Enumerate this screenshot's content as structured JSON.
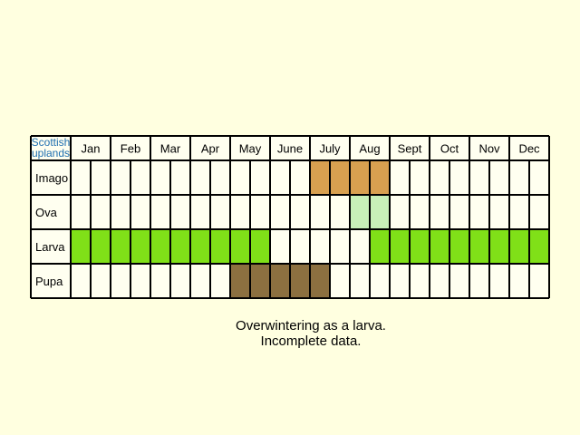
{
  "chart_data": {
    "type": "table",
    "corner_label": [
      "Scottish",
      "uplands"
    ],
    "months": [
      "Jan",
      "Feb",
      "Mar",
      "Apr",
      "May",
      "June",
      "July",
      "Aug",
      "Sept",
      "Oct",
      "Nov",
      "Dec"
    ],
    "periods_per_month": 2,
    "stages": [
      {
        "label": "Imago",
        "color": "#d8a050",
        "active_periods": [
          13,
          14,
          15,
          16
        ]
      },
      {
        "label": "Ova",
        "color": "#c8f0b8",
        "active_periods": [
          15,
          16
        ]
      },
      {
        "label": "Larva",
        "color": "#80e018",
        "active_periods": [
          1,
          2,
          3,
          4,
          5,
          6,
          7,
          8,
          9,
          10,
          16,
          17,
          18,
          19,
          20,
          21,
          22,
          23,
          24
        ]
      },
      {
        "label": "Pupa",
        "color": "#8c7040",
        "active_periods": [
          9,
          10,
          11,
          12,
          13
        ]
      }
    ],
    "colors": {
      "background": "#ffffe0",
      "cell": "#fffff0",
      "grid": "#000000",
      "corner_label": "#1f6fb0"
    }
  },
  "notes": [
    "Overwintering as a larva.",
    "Incomplete data."
  ],
  "months_display": [
    "Jan",
    "Feb",
    "Mar",
    "Apr",
    "May",
    "June",
    "July",
    "Aug",
    "Sept",
    "Oct",
    "Nov",
    "Dec"
  ]
}
